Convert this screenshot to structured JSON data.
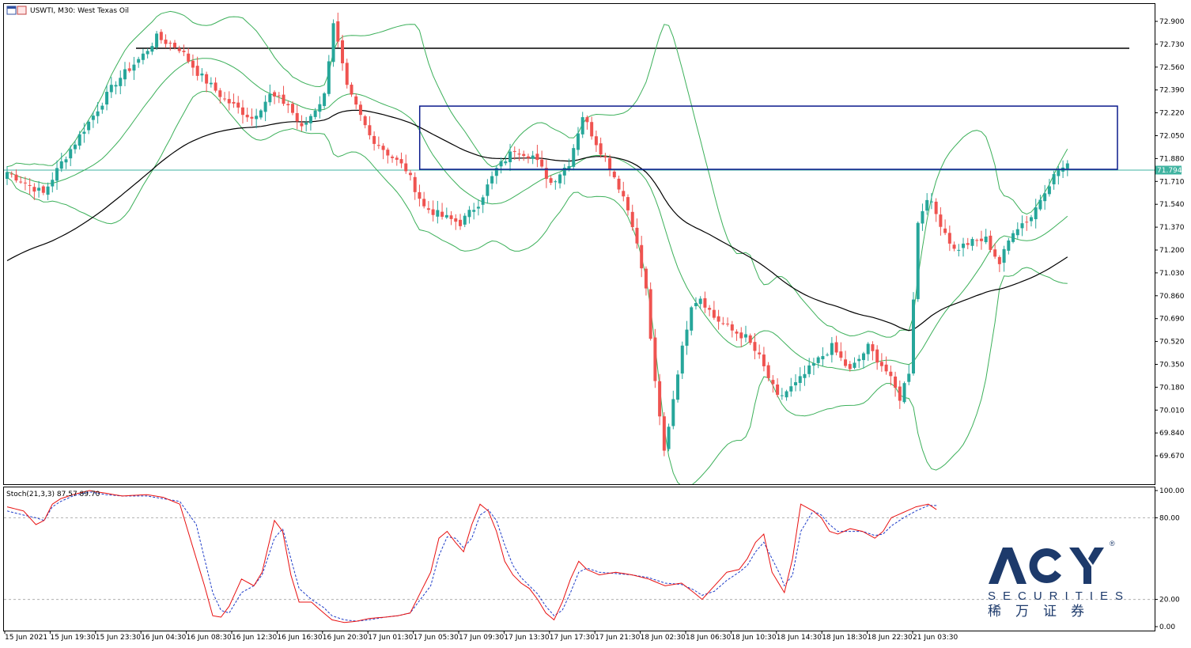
{
  "colors": {
    "bull": "#26a69a",
    "bear": "#ef5350",
    "band": "#3cb05a",
    "ma": "#000000",
    "rect": "#0b1a8c",
    "hline": "#000000",
    "priceLine": "#3fb3a0",
    "stochK": "#e81010",
    "stochD": "#1e3cc8",
    "brand": "#1d3a6b"
  },
  "chart_data": [
    {
      "type": "candlestick",
      "title": "USWTI, M30:  West Texas Oil",
      "timeframe": "M30",
      "ylim": [
        69.5,
        73.0
      ],
      "y_ticks": [
        "72.900",
        "72.730",
        "72.560",
        "72.390",
        "72.220",
        "72.050",
        "71.880",
        "71.710",
        "71.540",
        "71.370",
        "71.200",
        "71.030",
        "70.860",
        "70.690",
        "70.520",
        "70.350",
        "70.180",
        "70.010",
        "69.840",
        "69.670"
      ],
      "x_ticks": [
        "15 Jun 2021",
        "15 Jun 19:30",
        "15 Jun 23:30",
        "16 Jun 04:30",
        "16 Jun 08:30",
        "16 Jun 12:30",
        "16 Jun 16:30",
        "16 Jun 20:30",
        "17 Jun 01:30",
        "17 Jun 05:30",
        "17 Jun 09:30",
        "17 Jun 13:30",
        "17 Jun 17:30",
        "17 Jun 21:30",
        "18 Jun 02:30",
        "18 Jun 06:30",
        "18 Jun 10:30",
        "18 Jun 14:30",
        "18 Jun 18:30",
        "18 Jun 22:30",
        "21 Jun 03:30"
      ],
      "current_price": "71.794",
      "horizontal_line": 72.7,
      "rectangle": {
        "from": "17 Jun 05:30",
        "to": "21 Jun 03:30",
        "top": 72.27,
        "bottom": 71.8
      },
      "close_waypoints": [
        [
          0,
          71.78
        ],
        [
          4,
          71.7
        ],
        [
          8,
          71.62
        ],
        [
          12,
          71.85
        ],
        [
          18,
          72.15
        ],
        [
          24,
          72.45
        ],
        [
          30,
          72.65
        ],
        [
          33,
          72.78
        ],
        [
          38,
          72.7
        ],
        [
          42,
          72.52
        ],
        [
          48,
          72.32
        ],
        [
          54,
          72.18
        ],
        [
          58,
          72.35
        ],
        [
          62,
          72.28
        ],
        [
          65,
          72.1
        ],
        [
          70,
          72.35
        ],
        [
          72,
          72.9
        ],
        [
          75,
          72.4
        ],
        [
          80,
          72.05
        ],
        [
          84,
          71.92
        ],
        [
          88,
          71.8
        ],
        [
          92,
          71.52
        ],
        [
          96,
          71.45
        ],
        [
          100,
          71.4
        ],
        [
          104,
          71.55
        ],
        [
          108,
          71.8
        ],
        [
          112,
          71.95
        ],
        [
          116,
          71.9
        ],
        [
          120,
          71.7
        ],
        [
          124,
          71.85
        ],
        [
          127,
          72.2
        ],
        [
          130,
          72.0
        ],
        [
          133,
          71.82
        ],
        [
          136,
          71.6
        ],
        [
          138,
          71.4
        ],
        [
          141,
          70.9
        ],
        [
          143,
          70.2
        ],
        [
          145,
          69.7
        ],
        [
          148,
          70.3
        ],
        [
          151,
          70.8
        ],
        [
          153,
          70.85
        ],
        [
          156,
          70.7
        ],
        [
          160,
          70.6
        ],
        [
          163,
          70.55
        ],
        [
          166,
          70.4
        ],
        [
          170,
          70.1
        ],
        [
          174,
          70.2
        ],
        [
          178,
          70.35
        ],
        [
          182,
          70.48
        ],
        [
          186,
          70.3
        ],
        [
          190,
          70.48
        ],
        [
          194,
          70.3
        ],
        [
          197,
          70.1
        ],
        [
          199,
          70.3
        ],
        [
          201,
          71.4
        ],
        [
          203,
          71.6
        ],
        [
          206,
          71.4
        ],
        [
          209,
          71.2
        ],
        [
          212,
          71.25
        ],
        [
          216,
          71.28
        ],
        [
          219,
          71.1
        ],
        [
          222,
          71.35
        ],
        [
          226,
          71.45
        ],
        [
          229,
          71.65
        ],
        [
          232,
          71.8
        ],
        [
          234,
          71.82
        ]
      ],
      "indicators": [
        "Bollinger Bands",
        "Moving Average"
      ]
    },
    {
      "type": "line",
      "title": "Stoch(21,3,3) 87.57 89.70",
      "series": [
        {
          "name": "%K",
          "last": 87.57
        },
        {
          "name": "%D",
          "last": 89.7
        }
      ],
      "ylim": [
        0,
        100
      ],
      "y_ticks": [
        "100.00",
        "80.00",
        "20.00",
        "0.00"
      ],
      "levels": [
        80,
        20
      ],
      "k_waypoints": [
        [
          0,
          88
        ],
        [
          4,
          85
        ],
        [
          7,
          75
        ],
        [
          9,
          78
        ],
        [
          11,
          90
        ],
        [
          13,
          94
        ],
        [
          16,
          97
        ],
        [
          20,
          100
        ],
        [
          24,
          98
        ],
        [
          28,
          96
        ],
        [
          34,
          97
        ],
        [
          38,
          95
        ],
        [
          42,
          90
        ],
        [
          45,
          60
        ],
        [
          48,
          30
        ],
        [
          50,
          8
        ],
        [
          52,
          7
        ],
        [
          54,
          15
        ],
        [
          57,
          35
        ],
        [
          60,
          30
        ],
        [
          62,
          40
        ],
        [
          65,
          78
        ],
        [
          67,
          70
        ],
        [
          69,
          38
        ],
        [
          71,
          18
        ],
        [
          74,
          18
        ],
        [
          77,
          10
        ],
        [
          79,
          5
        ],
        [
          82,
          3
        ],
        [
          85,
          4
        ],
        [
          88,
          6
        ],
        [
          92,
          7
        ],
        [
          95,
          8
        ],
        [
          98,
          10
        ],
        [
          103,
          40
        ],
        [
          105,
          65
        ],
        [
          107,
          70
        ],
        [
          109,
          62
        ],
        [
          111,
          55
        ],
        [
          113,
          75
        ],
        [
          115,
          90
        ],
        [
          117,
          85
        ],
        [
          119,
          70
        ],
        [
          121,
          48
        ],
        [
          123,
          38
        ],
        [
          125,
          32
        ],
        [
          127,
          28
        ],
        [
          129,
          20
        ],
        [
          131,
          10
        ],
        [
          133,
          5
        ],
        [
          135,
          18
        ],
        [
          137,
          35
        ],
        [
          139,
          48
        ],
        [
          141,
          42
        ],
        [
          144,
          38
        ],
        [
          148,
          40
        ],
        [
          152,
          38
        ],
        [
          156,
          35
        ],
        [
          160,
          30
        ],
        [
          164,
          32
        ],
        [
          167,
          25
        ],
        [
          169,
          20
        ],
        [
          172,
          30
        ],
        [
          175,
          40
        ],
        [
          178,
          42
        ],
        [
          180,
          50
        ],
        [
          182,
          62
        ],
        [
          184,
          68
        ],
        [
          186,
          40
        ],
        [
          188,
          30
        ],
        [
          189,
          25
        ],
        [
          191,
          50
        ],
        [
          193,
          90
        ],
        [
          196,
          85
        ],
        [
          198,
          80
        ],
        [
          200,
          70
        ],
        [
          202,
          68
        ],
        [
          205,
          72
        ],
        [
          208,
          70
        ],
        [
          211,
          65
        ],
        [
          213,
          70
        ],
        [
          215,
          80
        ],
        [
          218,
          84
        ],
        [
          221,
          88
        ],
        [
          224,
          90
        ],
        [
          226,
          86
        ]
      ],
      "d_waypoints": [
        [
          0,
          85
        ],
        [
          4,
          82
        ],
        [
          7,
          80
        ],
        [
          9,
          78
        ],
        [
          11,
          88
        ],
        [
          13,
          92
        ],
        [
          16,
          96
        ],
        [
          20,
          99
        ],
        [
          24,
          97
        ],
        [
          28,
          96
        ],
        [
          34,
          96
        ],
        [
          38,
          94
        ],
        [
          42,
          92
        ],
        [
          46,
          75
        ],
        [
          48,
          50
        ],
        [
          50,
          25
        ],
        [
          52,
          12
        ],
        [
          54,
          10
        ],
        [
          57,
          25
        ],
        [
          60,
          30
        ],
        [
          62,
          38
        ],
        [
          65,
          65
        ],
        [
          67,
          72
        ],
        [
          69,
          50
        ],
        [
          71,
          28
        ],
        [
          74,
          20
        ],
        [
          77,
          14
        ],
        [
          79,
          8
        ],
        [
          82,
          5
        ],
        [
          85,
          4
        ],
        [
          88,
          5
        ],
        [
          92,
          7
        ],
        [
          95,
          8
        ],
        [
          98,
          10
        ],
        [
          103,
          30
        ],
        [
          105,
          52
        ],
        [
          107,
          66
        ],
        [
          109,
          65
        ],
        [
          111,
          58
        ],
        [
          113,
          65
        ],
        [
          115,
          82
        ],
        [
          117,
          86
        ],
        [
          119,
          78
        ],
        [
          121,
          60
        ],
        [
          123,
          45
        ],
        [
          125,
          36
        ],
        [
          127,
          30
        ],
        [
          129,
          24
        ],
        [
          131,
          15
        ],
        [
          133,
          8
        ],
        [
          135,
          12
        ],
        [
          137,
          25
        ],
        [
          139,
          40
        ],
        [
          141,
          43
        ],
        [
          144,
          40
        ],
        [
          148,
          39
        ],
        [
          152,
          38
        ],
        [
          156,
          36
        ],
        [
          160,
          32
        ],
        [
          164,
          31
        ],
        [
          167,
          27
        ],
        [
          169,
          23
        ],
        [
          172,
          26
        ],
        [
          175,
          34
        ],
        [
          178,
          40
        ],
        [
          180,
          45
        ],
        [
          182,
          55
        ],
        [
          184,
          62
        ],
        [
          186,
          50
        ],
        [
          188,
          38
        ],
        [
          189,
          30
        ],
        [
          191,
          38
        ],
        [
          193,
          70
        ],
        [
          196,
          85
        ],
        [
          198,
          82
        ],
        [
          200,
          75
        ],
        [
          202,
          70
        ],
        [
          205,
          70
        ],
        [
          208,
          70
        ],
        [
          211,
          67
        ],
        [
          213,
          68
        ],
        [
          215,
          74
        ],
        [
          218,
          80
        ],
        [
          221,
          85
        ],
        [
          224,
          89
        ],
        [
          226,
          89
        ]
      ]
    }
  ],
  "brand": {
    "logo_text": "ACY",
    "sub": "SECURITIES",
    "cn": "稀万证券",
    "reg": "®"
  }
}
